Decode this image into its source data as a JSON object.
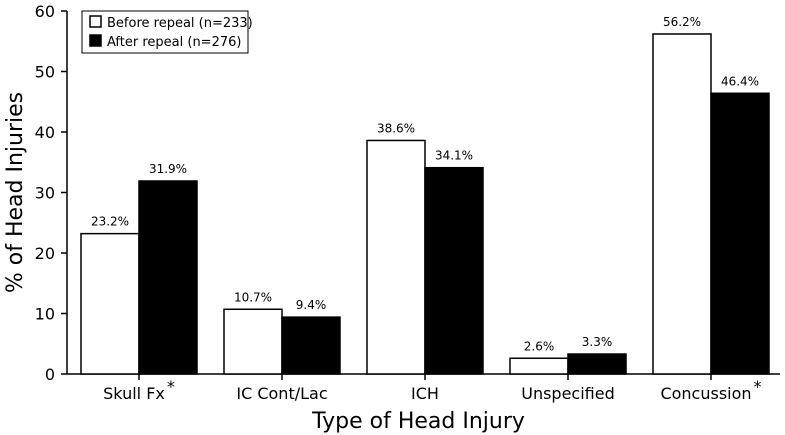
{
  "chart_data": {
    "type": "bar",
    "xlabel": "Type of Head Injury",
    "ylabel": "% of Head Injuries",
    "ylim": [
      0,
      60
    ],
    "yticks": [
      0,
      10,
      20,
      30,
      40,
      50,
      60
    ],
    "grid": false,
    "legend_position": "top-left",
    "categories": [
      "Skull Fx",
      "IC Cont/Lac",
      "ICH",
      "Unspecified",
      "Concussion"
    ],
    "significance_marker": "*",
    "significant_categories": [
      "Skull Fx",
      "Concussion"
    ],
    "series": [
      {
        "name": "Before repeal (n=233)",
        "color": "#ffffff",
        "values": [
          23.2,
          10.7,
          38.6,
          2.6,
          56.2
        ],
        "labels": [
          "23.2%",
          "10.7%",
          "38.6%",
          "2.6%",
          "56.2%"
        ]
      },
      {
        "name": "After repeal (n=276)",
        "color": "#000000",
        "values": [
          31.9,
          9.4,
          34.1,
          3.3,
          46.4
        ],
        "labels": [
          "31.9%",
          "9.4%",
          "34.1%",
          "3.3%",
          "46.4%"
        ]
      }
    ]
  }
}
